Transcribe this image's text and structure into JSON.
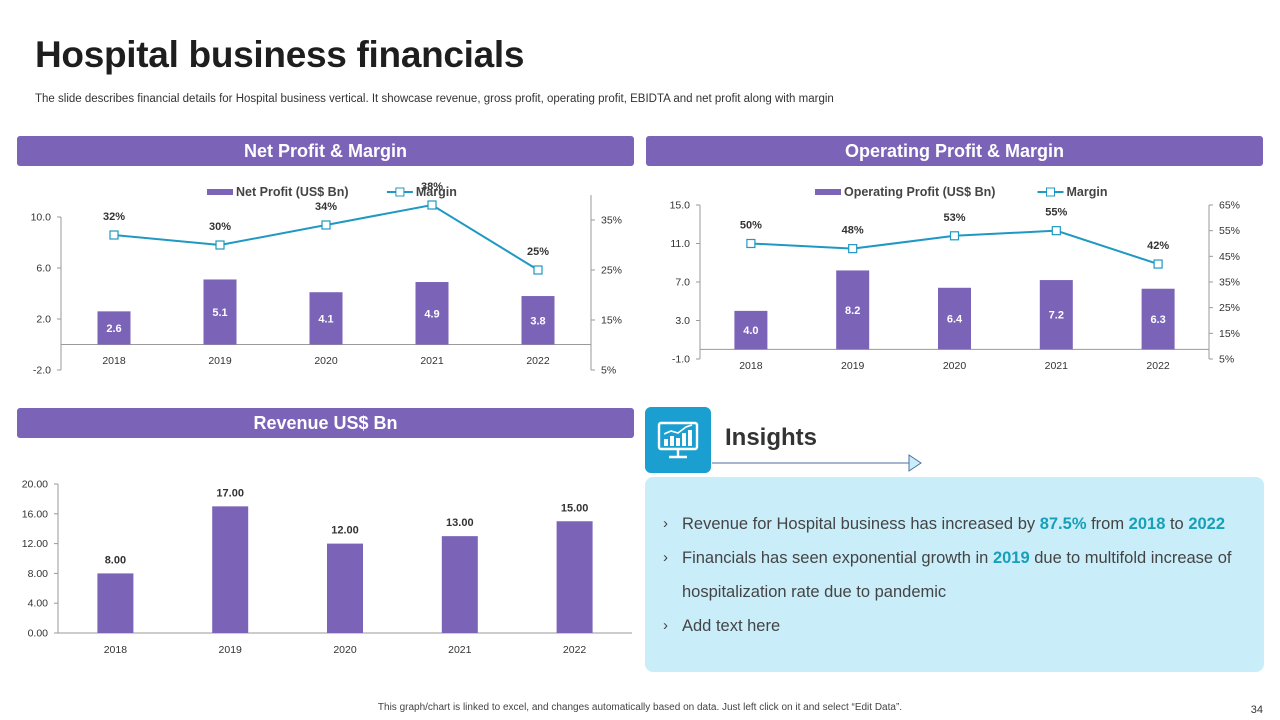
{
  "title": "Hospital business financials",
  "subtitle": "The slide describes financial details for Hospital business vertical. It showcase revenue, gross profit, operating profit, EBIDTA and net profit along with margin",
  "panels": {
    "net_profit": "Net Profit & Margin",
    "operating_profit": "Operating Profit & Margin",
    "revenue": "Revenue US$ Bn"
  },
  "colors": {
    "bar": "#7b63b8",
    "line": "#1f98c3",
    "accent": "#17a0b8",
    "header": "#7b63b8"
  },
  "insights": {
    "title": "Insights",
    "icon": "chart-monitor-icon",
    "bullets": [
      {
        "parts": [
          {
            "text": "Revenue for Hospital business has increased by "
          },
          {
            "text": "87.5%",
            "hl": true
          },
          {
            "text": " from "
          },
          {
            "text": "2018",
            "hl": true
          },
          {
            "text": " to "
          },
          {
            "text": "2022",
            "hl": true
          }
        ]
      },
      {
        "parts": [
          {
            "text": "Financials has seen exponential growth in "
          },
          {
            "text": "2019",
            "hl": true
          },
          {
            "text": " due to multifold increase of hospitalization rate due to pandemic"
          }
        ]
      },
      {
        "parts": [
          {
            "text": "Add text here"
          }
        ]
      }
    ]
  },
  "footer": "This graph/chart is linked to excel, and changes automatically based on data. Just left click on it and select “Edit Data”.",
  "page_number": "34",
  "chart_data": [
    {
      "type": "bar+line",
      "categories": [
        "2018",
        "2019",
        "2020",
        "2021",
        "2022"
      ],
      "series": [
        {
          "name": "Net Profit (US$ Bn)",
          "type": "bar",
          "axis": "left",
          "values": [
            2.6,
            5.1,
            4.1,
            4.9,
            3.8
          ],
          "labels": [
            "2.6",
            "5.1",
            "4.1",
            "4.9",
            "3.8"
          ]
        },
        {
          "name": "Margin",
          "type": "line",
          "axis": "right",
          "values": [
            32,
            30,
            34,
            38,
            25
          ],
          "labels": [
            "32%",
            "30%",
            "34%",
            "38%",
            "25%"
          ]
        }
      ],
      "ylim": [
        -2,
        10
      ],
      "yticks": [
        "10.0",
        "6.0",
        "2.0",
        "-2.0"
      ],
      "y2lim": [
        5,
        40
      ],
      "y2ticks": [
        "35%",
        "25%",
        "15%",
        "5%"
      ],
      "legend": "top"
    },
    {
      "type": "bar+line",
      "categories": [
        "2018",
        "2019",
        "2020",
        "2021",
        "2022"
      ],
      "series": [
        {
          "name": "Operating Profit (US$ Bn)",
          "type": "bar",
          "axis": "left",
          "values": [
            4.0,
            8.2,
            6.4,
            7.2,
            6.3
          ],
          "labels": [
            "4.0",
            "8.2",
            "6.4",
            "7.2",
            "6.3"
          ]
        },
        {
          "name": "Margin",
          "type": "line",
          "axis": "right",
          "values": [
            50,
            48,
            53,
            55,
            42
          ],
          "labels": [
            "50%",
            "48%",
            "53%",
            "55%",
            "42%"
          ]
        }
      ],
      "ylim": [
        -1,
        15
      ],
      "yticks": [
        "15.0",
        "11.0",
        "7.0",
        "3.0",
        "-1.0"
      ],
      "y2lim": [
        5,
        65
      ],
      "y2ticks": [
        "65%",
        "55%",
        "45%",
        "35%",
        "25%",
        "15%",
        "5%"
      ],
      "legend": "top"
    },
    {
      "type": "bar",
      "categories": [
        "2018",
        "2019",
        "2020",
        "2021",
        "2022"
      ],
      "series": [
        {
          "name": "Revenue US$ Bn",
          "type": "bar",
          "axis": "left",
          "values": [
            8,
            17,
            12,
            13,
            15
          ],
          "labels": [
            "8.00",
            "17.00",
            "12.00",
            "13.00",
            "15.00"
          ]
        }
      ],
      "ylim": [
        0,
        20
      ],
      "yticks": [
        "20.00",
        "16.00",
        "12.00",
        "8.00",
        "4.00",
        "0.00"
      ]
    }
  ]
}
